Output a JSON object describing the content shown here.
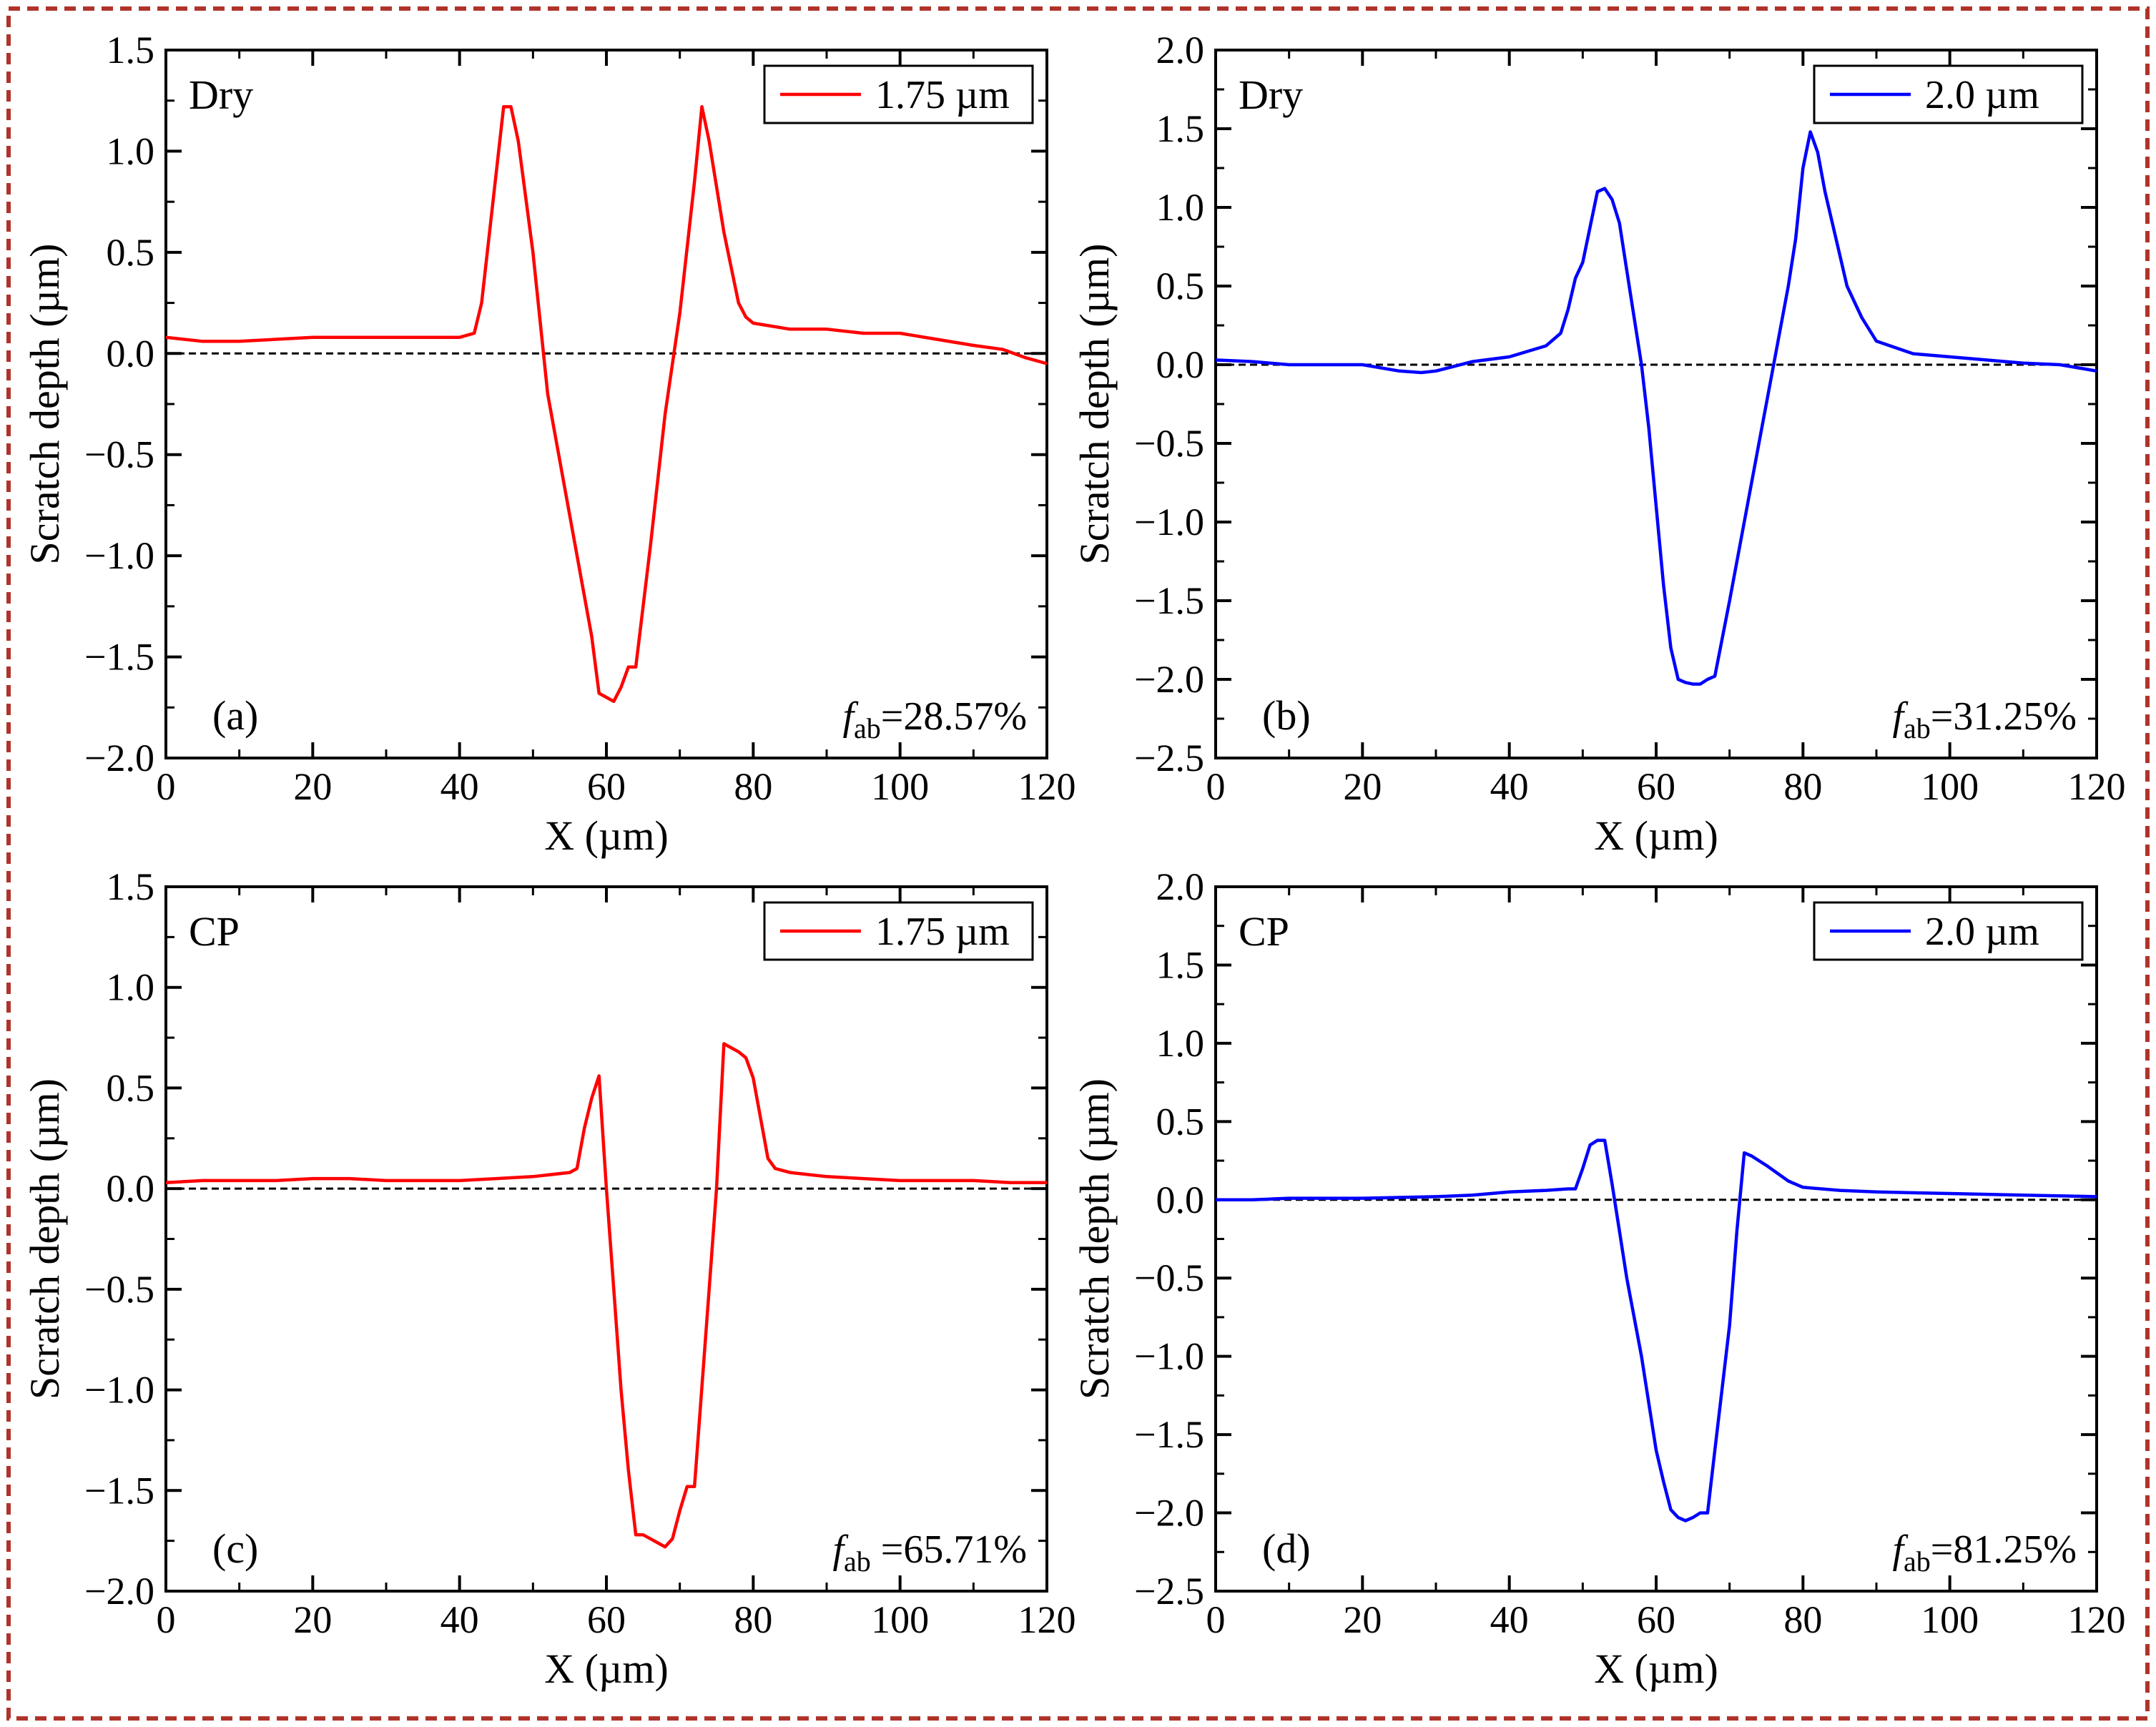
{
  "figure": {
    "frame_color": "#b0332b",
    "zero_line_color": "#000000"
  },
  "chart_data": [
    {
      "type": "line",
      "panel": "(a)",
      "condition": "Dry",
      "xlabel": "X (µm)",
      "ylabel": "Scratch depth (µm)",
      "xlim": [
        0,
        120
      ],
      "ylim": [
        -2.0,
        1.5
      ],
      "xticks": [
        "0",
        "20",
        "40",
        "60",
        "80",
        "100",
        "120"
      ],
      "yticks": [
        "1.5",
        "1.0",
        "0.5",
        "0.0",
        "−0.5",
        "−1.0",
        "−1.5",
        "−2.0"
      ],
      "ytick_values": [
        1.5,
        1.0,
        0.5,
        0.0,
        -0.5,
        -1.0,
        -1.5,
        -2.0
      ],
      "legend": {
        "label": "1.75 µm",
        "position": "top-right"
      },
      "fab": {
        "symbol": "f",
        "sub": "ab",
        "value": "=28.57%"
      },
      "series": [
        {
          "name": "1.75 µm",
          "color": "#ff0000",
          "x": [
            0,
            5,
            10,
            20,
            30,
            40,
            42,
            43,
            46,
            47,
            48,
            50,
            52,
            55,
            58,
            59,
            60,
            61,
            62,
            63,
            64,
            66,
            68,
            70,
            72,
            73,
            74,
            76,
            78,
            79,
            80,
            85,
            90,
            95,
            100,
            105,
            110,
            114,
            117,
            120
          ],
          "y": [
            0.08,
            0.06,
            0.06,
            0.08,
            0.08,
            0.08,
            0.1,
            0.25,
            1.22,
            1.22,
            1.05,
            0.5,
            -0.2,
            -0.8,
            -1.4,
            -1.68,
            -1.7,
            -1.72,
            -1.65,
            -1.55,
            -1.55,
            -0.95,
            -0.3,
            0.2,
            0.85,
            1.22,
            1.05,
            0.6,
            0.25,
            0.18,
            0.15,
            0.12,
            0.12,
            0.1,
            0.1,
            0.07,
            0.04,
            0.02,
            -0.02,
            -0.05
          ]
        }
      ]
    },
    {
      "type": "line",
      "panel": "(b)",
      "condition": "Dry",
      "xlabel": "X (µm)",
      "ylabel": "Scratch depth (µm)",
      "xlim": [
        0,
        120
      ],
      "ylim": [
        -2.5,
        2.0
      ],
      "xticks": [
        "0",
        "20",
        "40",
        "60",
        "80",
        "100",
        "120"
      ],
      "yticks": [
        "2.0",
        "1.5",
        "1.0",
        "0.5",
        "0.0",
        "−0.5",
        "−1.0",
        "−1.5",
        "−2.0",
        "−2.5"
      ],
      "ytick_values": [
        2.0,
        1.5,
        1.0,
        0.5,
        0.0,
        -0.5,
        -1.0,
        -1.5,
        -2.0,
        -2.5
      ],
      "legend": {
        "label": "2.0 µm",
        "position": "top-right"
      },
      "fab": {
        "symbol": "f",
        "sub": "ab",
        "value": "=31.25%"
      },
      "series": [
        {
          "name": "2.0 µm",
          "color": "#0000ff",
          "x": [
            0,
            5,
            10,
            15,
            20,
            25,
            28,
            30,
            35,
            40,
            45,
            47,
            48,
            49,
            50,
            52,
            53,
            54,
            55,
            56,
            57,
            58,
            59,
            60,
            61,
            62,
            63,
            64,
            65,
            66,
            67,
            68,
            70,
            72,
            74,
            76,
            78,
            79,
            80,
            81,
            82,
            83,
            84,
            85,
            86,
            88,
            90,
            95,
            100,
            105,
            110,
            115,
            120
          ],
          "y": [
            0.03,
            0.02,
            0.0,
            0.0,
            0.0,
            -0.04,
            -0.05,
            -0.04,
            0.02,
            0.05,
            0.12,
            0.2,
            0.35,
            0.55,
            0.65,
            1.1,
            1.12,
            1.05,
            0.9,
            0.6,
            0.3,
            0.0,
            -0.4,
            -0.9,
            -1.4,
            -1.8,
            -2.0,
            -2.02,
            -2.03,
            -2.03,
            -2.0,
            -1.98,
            -1.5,
            -1.0,
            -0.5,
            0.0,
            0.5,
            0.8,
            1.25,
            1.48,
            1.35,
            1.1,
            0.9,
            0.7,
            0.5,
            0.3,
            0.15,
            0.07,
            0.05,
            0.03,
            0.01,
            0.0,
            -0.04
          ]
        }
      ]
    },
    {
      "type": "line",
      "panel": "(c)",
      "condition": "CP",
      "xlabel": "X (µm)",
      "ylabel": "Scratch depth (µm)",
      "xlim": [
        0,
        120
      ],
      "ylim": [
        -2.0,
        1.5
      ],
      "xticks": [
        "0",
        "20",
        "40",
        "60",
        "80",
        "100",
        "120"
      ],
      "yticks": [
        "1.5",
        "1.0",
        "0.5",
        "0.0",
        "−0.5",
        "−1.0",
        "−1.5",
        "−2.0"
      ],
      "ytick_values": [
        1.5,
        1.0,
        0.5,
        0.0,
        -0.5,
        -1.0,
        -1.5,
        -2.0
      ],
      "legend": {
        "label": "1.75 µm",
        "position": "top-right"
      },
      "fab": {
        "symbol": "f",
        "sub": "ab",
        "value": " =65.71%"
      },
      "series": [
        {
          "name": "1.75 µm",
          "color": "#ff0000",
          "x": [
            0,
            5,
            10,
            15,
            20,
            25,
            30,
            35,
            40,
            45,
            50,
            55,
            56,
            57,
            58,
            59,
            60,
            61,
            62,
            63,
            64,
            65,
            66,
            67,
            68,
            69,
            70,
            71,
            72,
            74,
            75,
            76,
            77,
            78,
            79,
            80,
            81,
            82,
            83,
            84,
            85,
            90,
            95,
            100,
            105,
            110,
            115,
            120
          ],
          "y": [
            0.03,
            0.04,
            0.04,
            0.04,
            0.05,
            0.05,
            0.04,
            0.04,
            0.04,
            0.05,
            0.06,
            0.08,
            0.1,
            0.3,
            0.45,
            0.56,
            0.0,
            -0.5,
            -1.0,
            -1.4,
            -1.72,
            -1.72,
            -1.74,
            -1.76,
            -1.78,
            -1.74,
            -1.6,
            -1.48,
            -1.48,
            -0.5,
            0.0,
            0.72,
            0.7,
            0.68,
            0.65,
            0.55,
            0.35,
            0.15,
            0.1,
            0.09,
            0.08,
            0.06,
            0.05,
            0.04,
            0.04,
            0.04,
            0.03,
            0.03
          ]
        }
      ]
    },
    {
      "type": "line",
      "panel": "(d)",
      "condition": "CP",
      "xlabel": "X (µm)",
      "ylabel": "Scratch depth (µm)",
      "xlim": [
        0,
        120
      ],
      "ylim": [
        -2.5,
        2.0
      ],
      "xticks": [
        "0",
        "20",
        "40",
        "60",
        "80",
        "100",
        "120"
      ],
      "yticks": [
        "2.0",
        "1.5",
        "1.0",
        "0.5",
        "0.0",
        "−0.5",
        "−1.0",
        "−1.5",
        "−2.0",
        "−2.5"
      ],
      "ytick_values": [
        2.0,
        1.5,
        1.0,
        0.5,
        0.0,
        -0.5,
        -1.0,
        -1.5,
        -2.0,
        -2.5
      ],
      "legend": {
        "label": "2.0 µm",
        "position": "top-right"
      },
      "fab": {
        "symbol": "f",
        "sub": "ab",
        "value": "=81.25%"
      },
      "series": [
        {
          "name": "2.0 µm",
          "color": "#0000ff",
          "x": [
            0,
            5,
            10,
            20,
            30,
            35,
            40,
            45,
            48,
            49,
            50,
            51,
            52,
            53,
            54,
            55,
            56,
            58,
            60,
            61,
            62,
            63,
            64,
            65,
            66,
            67,
            68,
            70,
            71,
            72,
            73,
            75,
            78,
            80,
            85,
            90,
            100,
            110,
            120
          ],
          "y": [
            0.0,
            0.0,
            0.01,
            0.01,
            0.02,
            0.03,
            0.05,
            0.06,
            0.07,
            0.07,
            0.2,
            0.35,
            0.38,
            0.38,
            0.1,
            -0.2,
            -0.5,
            -1.0,
            -1.6,
            -1.8,
            -1.98,
            -2.03,
            -2.05,
            -2.03,
            -2.0,
            -2.0,
            -1.6,
            -0.8,
            -0.2,
            0.3,
            0.28,
            0.22,
            0.12,
            0.08,
            0.06,
            0.05,
            0.04,
            0.03,
            0.02
          ]
        }
      ]
    }
  ]
}
